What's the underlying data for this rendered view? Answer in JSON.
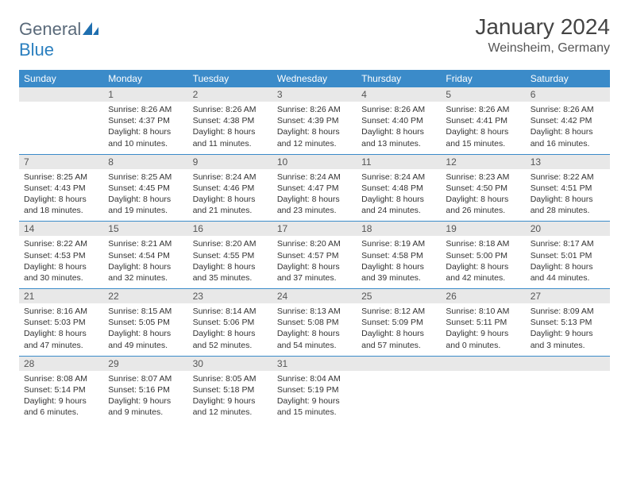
{
  "brand": {
    "part1": "General",
    "part2": "Blue"
  },
  "title": "January 2024",
  "location": "Weinsheim, Germany",
  "colors": {
    "header_bg": "#3b8bc9",
    "header_fg": "#ffffff",
    "daynum_bg": "#e8e8e8",
    "row_border": "#3b8bc9",
    "title_color": "#444444",
    "text_color": "#333333",
    "logo_gray": "#5a6a7a",
    "logo_blue": "#2a7fbf"
  },
  "day_headers": [
    "Sunday",
    "Monday",
    "Tuesday",
    "Wednesday",
    "Thursday",
    "Friday",
    "Saturday"
  ],
  "weeks": [
    [
      {
        "n": "",
        "sr": "",
        "ss": "",
        "dl": ""
      },
      {
        "n": "1",
        "sr": "Sunrise: 8:26 AM",
        "ss": "Sunset: 4:37 PM",
        "dl": "Daylight: 8 hours and 10 minutes."
      },
      {
        "n": "2",
        "sr": "Sunrise: 8:26 AM",
        "ss": "Sunset: 4:38 PM",
        "dl": "Daylight: 8 hours and 11 minutes."
      },
      {
        "n": "3",
        "sr": "Sunrise: 8:26 AM",
        "ss": "Sunset: 4:39 PM",
        "dl": "Daylight: 8 hours and 12 minutes."
      },
      {
        "n": "4",
        "sr": "Sunrise: 8:26 AM",
        "ss": "Sunset: 4:40 PM",
        "dl": "Daylight: 8 hours and 13 minutes."
      },
      {
        "n": "5",
        "sr": "Sunrise: 8:26 AM",
        "ss": "Sunset: 4:41 PM",
        "dl": "Daylight: 8 hours and 15 minutes."
      },
      {
        "n": "6",
        "sr": "Sunrise: 8:26 AM",
        "ss": "Sunset: 4:42 PM",
        "dl": "Daylight: 8 hours and 16 minutes."
      }
    ],
    [
      {
        "n": "7",
        "sr": "Sunrise: 8:25 AM",
        "ss": "Sunset: 4:43 PM",
        "dl": "Daylight: 8 hours and 18 minutes."
      },
      {
        "n": "8",
        "sr": "Sunrise: 8:25 AM",
        "ss": "Sunset: 4:45 PM",
        "dl": "Daylight: 8 hours and 19 minutes."
      },
      {
        "n": "9",
        "sr": "Sunrise: 8:24 AM",
        "ss": "Sunset: 4:46 PM",
        "dl": "Daylight: 8 hours and 21 minutes."
      },
      {
        "n": "10",
        "sr": "Sunrise: 8:24 AM",
        "ss": "Sunset: 4:47 PM",
        "dl": "Daylight: 8 hours and 23 minutes."
      },
      {
        "n": "11",
        "sr": "Sunrise: 8:24 AM",
        "ss": "Sunset: 4:48 PM",
        "dl": "Daylight: 8 hours and 24 minutes."
      },
      {
        "n": "12",
        "sr": "Sunrise: 8:23 AM",
        "ss": "Sunset: 4:50 PM",
        "dl": "Daylight: 8 hours and 26 minutes."
      },
      {
        "n": "13",
        "sr": "Sunrise: 8:22 AM",
        "ss": "Sunset: 4:51 PM",
        "dl": "Daylight: 8 hours and 28 minutes."
      }
    ],
    [
      {
        "n": "14",
        "sr": "Sunrise: 8:22 AM",
        "ss": "Sunset: 4:53 PM",
        "dl": "Daylight: 8 hours and 30 minutes."
      },
      {
        "n": "15",
        "sr": "Sunrise: 8:21 AM",
        "ss": "Sunset: 4:54 PM",
        "dl": "Daylight: 8 hours and 32 minutes."
      },
      {
        "n": "16",
        "sr": "Sunrise: 8:20 AM",
        "ss": "Sunset: 4:55 PM",
        "dl": "Daylight: 8 hours and 35 minutes."
      },
      {
        "n": "17",
        "sr": "Sunrise: 8:20 AM",
        "ss": "Sunset: 4:57 PM",
        "dl": "Daylight: 8 hours and 37 minutes."
      },
      {
        "n": "18",
        "sr": "Sunrise: 8:19 AM",
        "ss": "Sunset: 4:58 PM",
        "dl": "Daylight: 8 hours and 39 minutes."
      },
      {
        "n": "19",
        "sr": "Sunrise: 8:18 AM",
        "ss": "Sunset: 5:00 PM",
        "dl": "Daylight: 8 hours and 42 minutes."
      },
      {
        "n": "20",
        "sr": "Sunrise: 8:17 AM",
        "ss": "Sunset: 5:01 PM",
        "dl": "Daylight: 8 hours and 44 minutes."
      }
    ],
    [
      {
        "n": "21",
        "sr": "Sunrise: 8:16 AM",
        "ss": "Sunset: 5:03 PM",
        "dl": "Daylight: 8 hours and 47 minutes."
      },
      {
        "n": "22",
        "sr": "Sunrise: 8:15 AM",
        "ss": "Sunset: 5:05 PM",
        "dl": "Daylight: 8 hours and 49 minutes."
      },
      {
        "n": "23",
        "sr": "Sunrise: 8:14 AM",
        "ss": "Sunset: 5:06 PM",
        "dl": "Daylight: 8 hours and 52 minutes."
      },
      {
        "n": "24",
        "sr": "Sunrise: 8:13 AM",
        "ss": "Sunset: 5:08 PM",
        "dl": "Daylight: 8 hours and 54 minutes."
      },
      {
        "n": "25",
        "sr": "Sunrise: 8:12 AM",
        "ss": "Sunset: 5:09 PM",
        "dl": "Daylight: 8 hours and 57 minutes."
      },
      {
        "n": "26",
        "sr": "Sunrise: 8:10 AM",
        "ss": "Sunset: 5:11 PM",
        "dl": "Daylight: 9 hours and 0 minutes."
      },
      {
        "n": "27",
        "sr": "Sunrise: 8:09 AM",
        "ss": "Sunset: 5:13 PM",
        "dl": "Daylight: 9 hours and 3 minutes."
      }
    ],
    [
      {
        "n": "28",
        "sr": "Sunrise: 8:08 AM",
        "ss": "Sunset: 5:14 PM",
        "dl": "Daylight: 9 hours and 6 minutes."
      },
      {
        "n": "29",
        "sr": "Sunrise: 8:07 AM",
        "ss": "Sunset: 5:16 PM",
        "dl": "Daylight: 9 hours and 9 minutes."
      },
      {
        "n": "30",
        "sr": "Sunrise: 8:05 AM",
        "ss": "Sunset: 5:18 PM",
        "dl": "Daylight: 9 hours and 12 minutes."
      },
      {
        "n": "31",
        "sr": "Sunrise: 8:04 AM",
        "ss": "Sunset: 5:19 PM",
        "dl": "Daylight: 9 hours and 15 minutes."
      },
      {
        "n": "",
        "sr": "",
        "ss": "",
        "dl": ""
      },
      {
        "n": "",
        "sr": "",
        "ss": "",
        "dl": ""
      },
      {
        "n": "",
        "sr": "",
        "ss": "",
        "dl": ""
      }
    ]
  ]
}
